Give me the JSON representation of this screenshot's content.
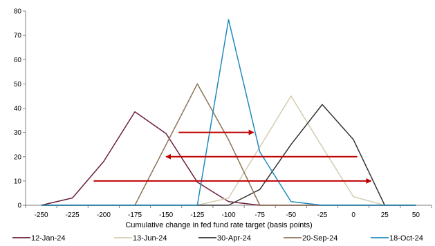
{
  "chart_data": {
    "type": "line",
    "title": "",
    "xlabel": "Cumulative change in fed fund rate target (basis points)",
    "ylabel": "",
    "x": [
      -250,
      -225,
      -200,
      -175,
      -150,
      -125,
      -100,
      -75,
      -50,
      -25,
      0,
      25,
      50
    ],
    "x_tick_labels": [
      "-250",
      "-225",
      "-200",
      "-175",
      "-150",
      "-125",
      "-100",
      "-75",
      "-50",
      "-25",
      "0",
      "25",
      "50"
    ],
    "xlim": [
      -262.5,
      62.5
    ],
    "ylim": [
      0,
      80
    ],
    "y_ticks": [
      0,
      10,
      20,
      30,
      40,
      50,
      60,
      70,
      80
    ],
    "grid": false,
    "legend_position": "bottom",
    "series": [
      {
        "name": "12-Jan-24",
        "color": "#6b1d3f",
        "values": [
          0,
          3,
          18,
          38.5,
          29.5,
          9.5,
          1.5,
          0,
          0,
          0,
          0,
          0,
          0
        ]
      },
      {
        "name": "13-Jun-24",
        "color": "#d4cdb0",
        "values": [
          0,
          0,
          0,
          0,
          0,
          0,
          3,
          24,
          45,
          24,
          3.5,
          0,
          0
        ]
      },
      {
        "name": "30-Apr-24",
        "color": "#333333",
        "values": [
          0,
          0,
          0,
          0,
          0,
          0,
          0,
          6.5,
          25,
          41.5,
          27,
          0,
          0
        ]
      },
      {
        "name": "20-Sep-24",
        "color": "#8b7355",
        "values": [
          0,
          0,
          0,
          0,
          25,
          50,
          27,
          0,
          0,
          0,
          0,
          0,
          0
        ]
      },
      {
        "name": "18-Oct-24",
        "color": "#1f8ac0",
        "values": [
          0,
          0,
          0,
          0,
          0,
          0,
          76.5,
          22,
          1.5,
          0,
          0,
          0,
          0
        ]
      }
    ],
    "annotations": [
      {
        "kind": "arrow",
        "color": "#c00000",
        "x_from": -140,
        "x_to": -80,
        "y": 30
      },
      {
        "kind": "arrow",
        "color": "#c00000",
        "x_from": 3,
        "x_to": -150,
        "y": 20
      },
      {
        "kind": "arrow",
        "color": "#c00000",
        "x_from": -208,
        "x_to": 14,
        "y": 10
      }
    ]
  }
}
